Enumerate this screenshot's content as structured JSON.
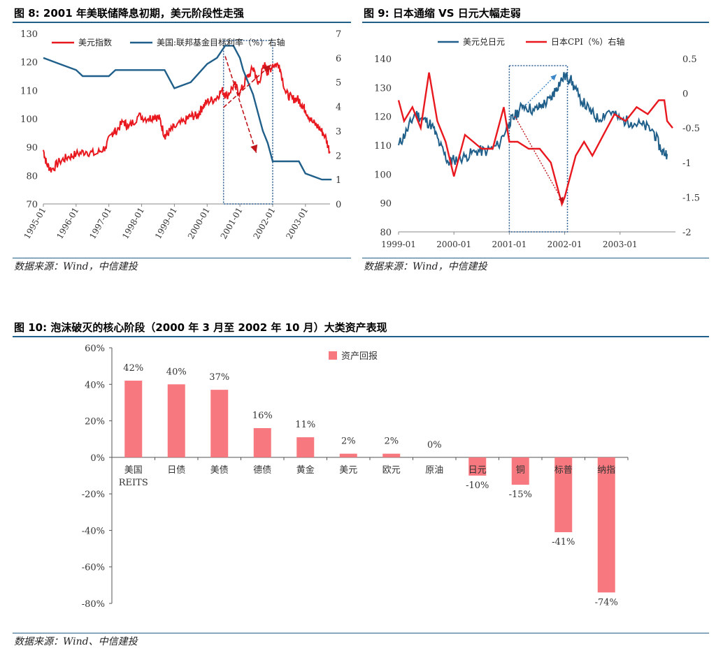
{
  "fig8": {
    "title": "图 8: 2001 年美联储降息初期，美元阶段性走强",
    "source": "数据来源：Wind，中信建投",
    "chart_data": {
      "type": "line",
      "x_ticks": [
        "1995-01",
        "1996-01",
        "1997-01",
        "1998-01",
        "1999-01",
        "2000-01",
        "2001-01",
        "2002-01",
        "2003-01"
      ],
      "ylim_left": [
        70,
        130
      ],
      "yticks_left": [
        70,
        80,
        90,
        100,
        110,
        120,
        130
      ],
      "ylim_right": [
        0,
        7
      ],
      "yticks_right": [
        0,
        1,
        2,
        3,
        4,
        5,
        6,
        7
      ],
      "legend_position": "top",
      "colors": {
        "dxy": "#e8181e",
        "fed": "#1f5f8a",
        "arrow": "#c0151b",
        "box": "#2b5d95"
      },
      "series": [
        {
          "name": "美元指数",
          "axis": "left",
          "x": [
            1995.0,
            1995.1,
            1995.25,
            1995.5,
            1995.75,
            1996.0,
            1996.3,
            1996.6,
            1996.9,
            1997.1,
            1997.2,
            1997.45,
            1997.6,
            1997.9,
            1998.2,
            1998.4,
            1998.55,
            1998.7,
            1998.8,
            1999.0,
            1999.3,
            1999.5,
            1999.7,
            1999.85,
            2000.0,
            2000.25,
            2000.45,
            2000.6,
            2000.83,
            2001.0,
            2001.2,
            2001.42,
            2001.55,
            2001.75,
            2001.85,
            2002.0,
            2002.2,
            2002.4,
            2002.6,
            2002.75,
            2002.9,
            2003.0,
            2003.2,
            2003.4,
            2003.6,
            2003.75
          ],
          "y": [
            89,
            84,
            82,
            85,
            86.5,
            87.5,
            88.5,
            87.5,
            90,
            95,
            95.5,
            99,
            97,
            101,
            100,
            101,
            100,
            94,
            95,
            97,
            99,
            101,
            101,
            104,
            106,
            107,
            110,
            108,
            112,
            109,
            114,
            118,
            112,
            119,
            116,
            119,
            119,
            109,
            107,
            107,
            105,
            103,
            99,
            97,
            94,
            88
          ]
        },
        {
          "name": "美国:联邦基金目标利率（%）右轴",
          "axis": "right",
          "x": [
            1995.0,
            1995.5,
            1996.0,
            1996.2,
            1997.0,
            1997.2,
            1998.7,
            1998.9,
            1999.0,
            1999.5,
            2000.0,
            2000.3,
            2000.55,
            2000.8,
            2001.0,
            2001.1,
            2001.25,
            2001.4,
            2001.6,
            2001.7,
            2001.85,
            2002.0,
            2002.3,
            2002.8,
            2003.0,
            2003.5,
            2003.8
          ],
          "y": [
            6.0,
            5.75,
            5.5,
            5.25,
            5.25,
            5.5,
            5.5,
            5.0,
            4.75,
            5.0,
            5.75,
            6.0,
            6.5,
            6.5,
            6.0,
            5.5,
            5.0,
            4.5,
            3.5,
            3.0,
            2.5,
            1.75,
            1.75,
            1.75,
            1.25,
            1.0,
            1.0
          ]
        }
      ]
    }
  },
  "fig9": {
    "title": "图 9: 日本通缩 VS 日元大幅走弱",
    "source": "数据来源：Wind，中信建投",
    "chart_data": {
      "type": "line",
      "x_ticks": [
        "1999-01",
        "2000-01",
        "2001-01",
        "2002-01",
        "2003-01"
      ],
      "ylim_left": [
        80,
        140
      ],
      "yticks_left": [
        80,
        90,
        100,
        110,
        120,
        130,
        140
      ],
      "ylim_right": [
        -2,
        0.5
      ],
      "yticks_right": [
        0.5,
        0,
        -0.5,
        -1,
        -1.5,
        -2
      ],
      "legend_position": "top",
      "colors": {
        "usdjpy": "#1f5f8a",
        "cpi": "#e8181e",
        "box": "#2b5d95",
        "arrow_red": "#c0151b",
        "arrow_blue": "#3a86c8"
      },
      "series": [
        {
          "name": "美元兑日元",
          "axis": "left",
          "x": [
            1999.0,
            1999.15,
            1999.3,
            1999.45,
            1999.6,
            1999.75,
            1999.9,
            2000.0,
            2000.2,
            2000.4,
            2000.6,
            2000.8,
            2001.0,
            2001.1,
            2001.25,
            2001.45,
            2001.6,
            2001.75,
            2001.85,
            2002.0,
            2002.1,
            2002.25,
            2002.45,
            2002.6,
            2002.8,
            2003.0,
            2003.2,
            2003.4,
            2003.6,
            2003.75,
            2003.85
          ],
          "y": [
            110,
            115,
            121,
            119,
            117,
            110,
            104,
            105,
            106,
            108,
            108,
            110,
            118,
            120,
            124,
            122,
            124,
            126,
            130,
            134,
            133,
            127,
            122,
            119,
            122,
            119,
            118,
            117,
            115,
            108,
            107
          ]
        },
        {
          "name": "日本CPI（%）右轴",
          "axis": "right",
          "x": [
            1999.0,
            1999.1,
            1999.25,
            1999.4,
            1999.55,
            1999.7,
            1999.85,
            2000.0,
            2000.2,
            2000.35,
            2000.5,
            2000.7,
            2000.9,
            2001.0,
            2001.15,
            2001.35,
            2001.55,
            2001.75,
            2001.95,
            2002.0,
            2002.2,
            2002.35,
            2002.5,
            2002.7,
            2002.9,
            2003.1,
            2003.3,
            2003.5,
            2003.7,
            2003.8,
            2003.85,
            2003.95
          ],
          "y": [
            -0.1,
            -0.4,
            -0.2,
            -0.5,
            0.3,
            -0.4,
            -0.7,
            -1.2,
            -0.6,
            -0.7,
            -0.8,
            -0.8,
            -0.2,
            -0.7,
            -0.7,
            -0.8,
            -0.8,
            -1.0,
            -1.6,
            -1.5,
            -0.9,
            -0.7,
            -0.9,
            -0.6,
            -0.3,
            -0.4,
            -0.2,
            -0.3,
            -0.1,
            -0.1,
            -0.4,
            -0.5
          ]
        }
      ]
    }
  },
  "fig10": {
    "title": "图 10: 泡沫破灭的核心阶段（2000 年 3 月至 2002 年 10 月）大类资产表现",
    "source": "数据来源：Wind、中信建投",
    "chart_data": {
      "type": "bar",
      "categories": [
        [
          "美国",
          "REITS"
        ],
        [
          "日债"
        ],
        [
          "美债"
        ],
        [
          "德债"
        ],
        [
          "黄金"
        ],
        [
          "美元"
        ],
        [
          "欧元"
        ],
        [
          "原油"
        ],
        [
          "日元"
        ],
        [
          "铜"
        ],
        [
          "标普"
        ],
        [
          "纳指"
        ]
      ],
      "series": [
        {
          "name": "资产回报",
          "values": [
            42,
            40,
            37,
            16,
            11,
            2,
            2,
            0,
            -10,
            -15,
            -41,
            -74
          ]
        }
      ],
      "labels": [
        "42%",
        "40%",
        "37%",
        "16%",
        "11%",
        "2%",
        "2%",
        "0%",
        "-10%",
        "-15%",
        "-41%",
        "-74%"
      ],
      "ylim": [
        -80,
        60
      ],
      "yticks": [
        -80,
        -60,
        -40,
        -20,
        0,
        20,
        40,
        60
      ],
      "ytick_labels": [
        "-80%",
        "-60%",
        "-40%",
        "-20%",
        "0%",
        "20%",
        "40%",
        "60%"
      ],
      "legend_position": "top",
      "colors": {
        "bar": "#f7787e"
      }
    }
  }
}
